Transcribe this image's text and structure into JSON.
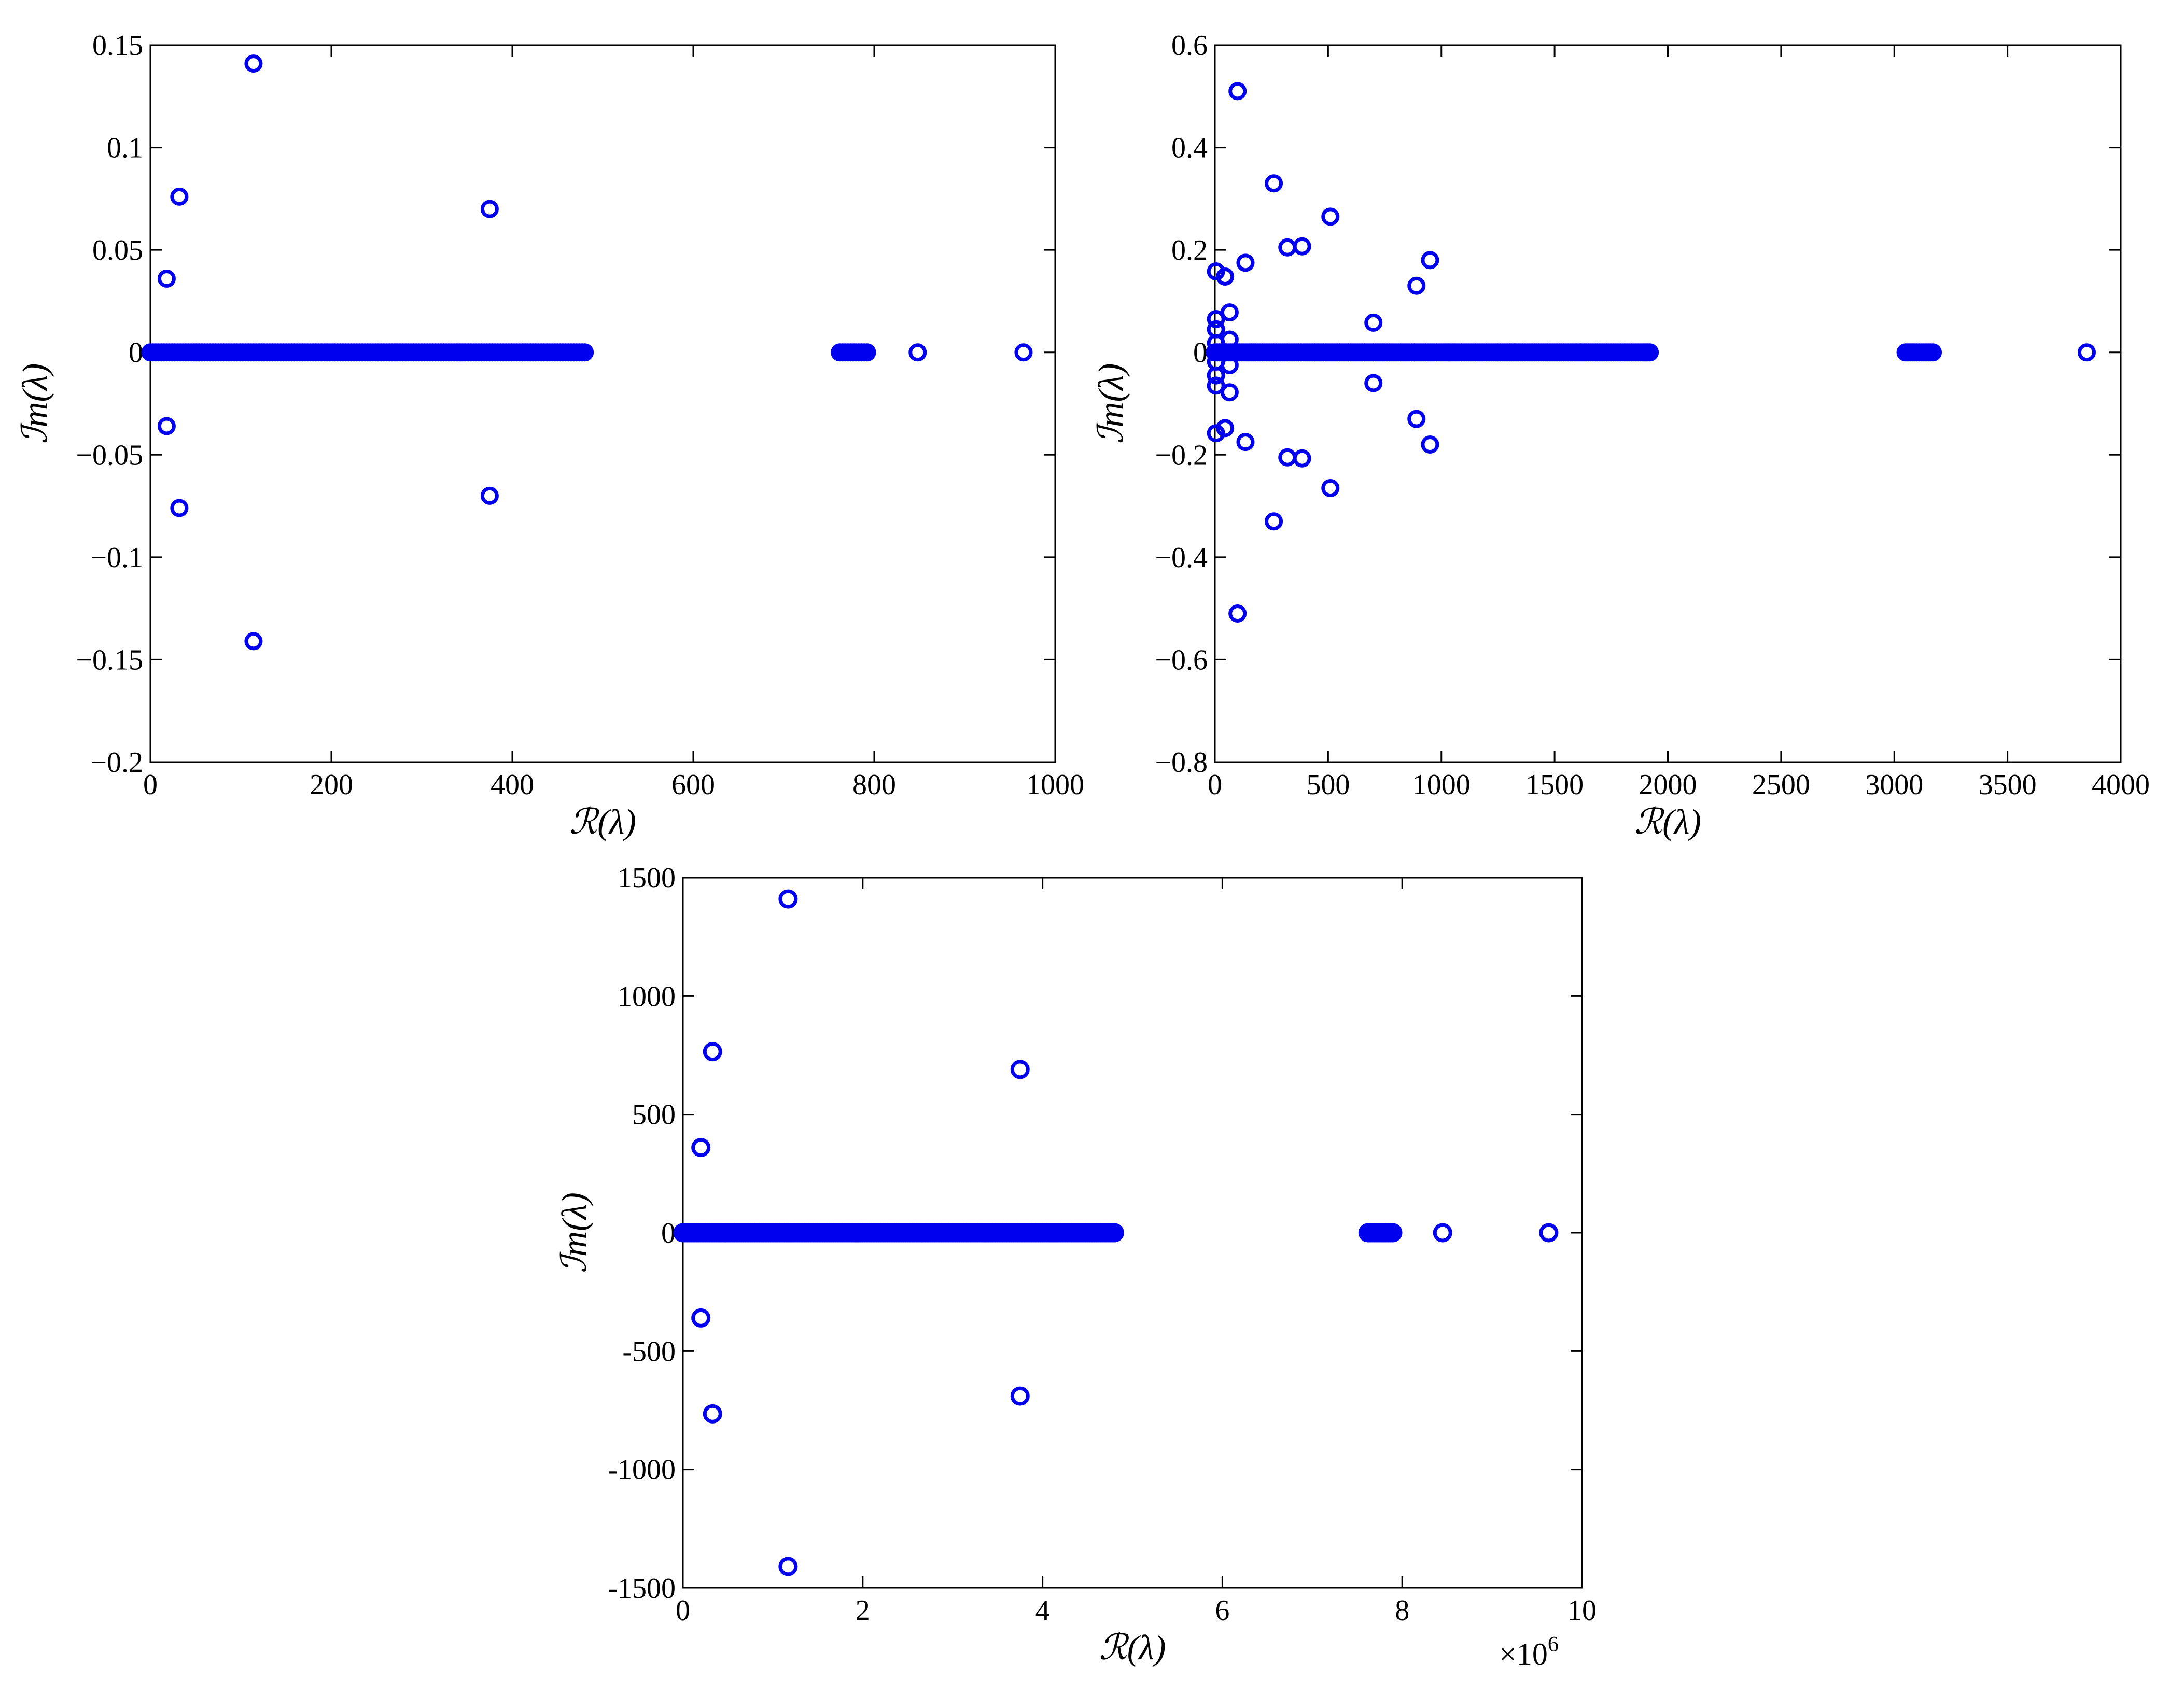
{
  "colors": {
    "marker": "#0000ee",
    "axis": "#000000",
    "background": "#ffffff"
  },
  "chart_data": [
    {
      "type": "scatter",
      "title": "",
      "xlabel": "ℛ(λ)",
      "ylabel": "ℐm(λ)",
      "xlim": [
        0,
        1000
      ],
      "ylim": [
        -0.2,
        0.15
      ],
      "xticks": [
        0,
        200,
        400,
        600,
        800,
        1000
      ],
      "xtick_labels": [
        "0",
        "200",
        "400",
        "600",
        "800",
        "1000"
      ],
      "yticks": [
        -0.2,
        -0.15,
        -0.1,
        -0.05,
        0,
        0.05,
        0.1,
        0.15
      ],
      "ytick_labels": [
        "−0.2",
        "−0.15",
        "−0.1",
        "−0.05",
        "0",
        "0.05",
        "0.1",
        "0.15"
      ],
      "x_multiplier": "",
      "grid": false,
      "series": [
        {
          "points": [
            [
              18,
              0.036
            ],
            [
              18,
              -0.036
            ],
            [
              32,
              0.076
            ],
            [
              32,
              -0.076
            ],
            [
              114,
              0.141
            ],
            [
              114,
              -0.141
            ],
            [
              375,
              0.07
            ],
            [
              375,
              -0.07
            ],
            [
              848,
              0
            ],
            [
              965,
              0
            ]
          ],
          "clusters": [
            {
              "from": 0,
              "to": 482,
              "step": 3,
              "y": 0
            },
            {
              "from": 762,
              "to": 792,
              "step": 3,
              "y": 0
            }
          ]
        }
      ]
    },
    {
      "type": "scatter",
      "title": "",
      "xlabel": "ℛ(λ)",
      "ylabel": "ℐm(λ)",
      "xlim": [
        0,
        4000
      ],
      "ylim": [
        -0.8,
        0.6
      ],
      "xticks": [
        0,
        500,
        1000,
        1500,
        2000,
        2500,
        3000,
        3500,
        4000
      ],
      "xtick_labels": [
        "0",
        "500",
        "1000",
        "1500",
        "2000",
        "2500",
        "3000",
        "3500",
        "4000"
      ],
      "yticks": [
        -0.8,
        -0.6,
        -0.4,
        -0.2,
        0,
        0.2,
        0.4,
        0.6
      ],
      "ytick_labels": [
        "−0.8",
        "−0.6",
        "−0.4",
        "−0.2",
        "0",
        "0.2",
        "0.4",
        "0.6"
      ],
      "x_multiplier": "",
      "grid": false,
      "series": [
        {
          "points": [
            [
              100,
              0.51
            ],
            [
              100,
              -0.51
            ],
            [
              260,
              0.33
            ],
            [
              260,
              -0.33
            ],
            [
              510,
              0.265
            ],
            [
              510,
              -0.265
            ],
            [
              320,
              0.205
            ],
            [
              320,
              -0.205
            ],
            [
              385,
              0.207
            ],
            [
              385,
              -0.207
            ],
            [
              950,
              0.18
            ],
            [
              950,
              -0.18
            ],
            [
              135,
              0.175
            ],
            [
              135,
              -0.175
            ],
            [
              5,
              0.158
            ],
            [
              5,
              -0.158
            ],
            [
              45,
              0.148
            ],
            [
              45,
              -0.148
            ],
            [
              890,
              0.13
            ],
            [
              890,
              -0.13
            ],
            [
              65,
              0.078
            ],
            [
              65,
              -0.078
            ],
            [
              5,
              0.065
            ],
            [
              5,
              -0.065
            ],
            [
              700,
              0.058
            ],
            [
              700,
              -0.06
            ],
            [
              5,
              0.045
            ],
            [
              5,
              -0.045
            ],
            [
              65,
              0.025
            ],
            [
              65,
              -0.025
            ],
            [
              5,
              0.018
            ],
            [
              5,
              -0.018
            ],
            [
              3850,
              0
            ]
          ],
          "clusters": [
            {
              "from": 0,
              "to": 1920,
              "step": 10,
              "y": 0
            },
            {
              "from": 3050,
              "to": 3170,
              "step": 10,
              "y": 0
            }
          ]
        }
      ]
    },
    {
      "type": "scatter",
      "title": "",
      "xlabel": "ℛ(λ)",
      "ylabel": "ℐm(λ)",
      "xlim": [
        0,
        10
      ],
      "ylim": [
        -1500,
        1500
      ],
      "xticks": [
        0,
        2,
        4,
        6,
        8,
        10
      ],
      "xtick_labels": [
        "0",
        "2",
        "4",
        "6",
        "8",
        "10"
      ],
      "yticks": [
        -1500,
        -1000,
        -500,
        0,
        500,
        1000,
        1500
      ],
      "ytick_labels": [
        "-1500",
        "-1000",
        "-500",
        "0",
        "500",
        "1000",
        "1500"
      ],
      "x_multiplier": "×10",
      "x_multiplier_exp": "6",
      "grid": false,
      "series": [
        {
          "points": [
            [
              0.2,
              360
            ],
            [
              0.2,
              -360
            ],
            [
              0.33,
              765
            ],
            [
              0.33,
              -765
            ],
            [
              1.17,
              1410
            ],
            [
              1.17,
              -1410
            ],
            [
              3.75,
              690
            ],
            [
              3.75,
              -690
            ],
            [
              8.45,
              0
            ],
            [
              9.63,
              0
            ]
          ],
          "clusters": [
            {
              "from": 0,
              "to": 4.8,
              "step": 0.025,
              "y": 0
            },
            {
              "from": 7.62,
              "to": 7.9,
              "step": 0.025,
              "y": 0
            }
          ]
        }
      ]
    }
  ]
}
